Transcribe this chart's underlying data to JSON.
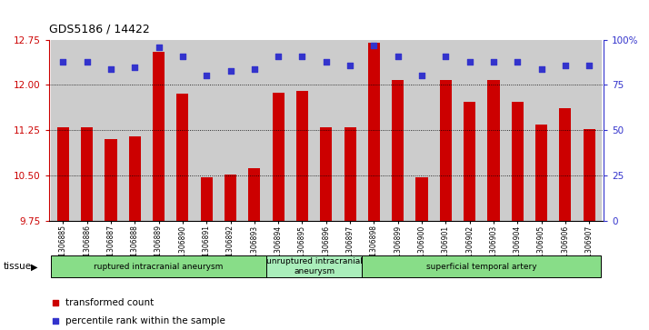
{
  "title": "GDS5186 / 14422",
  "samples": [
    "GSM1306885",
    "GSM1306886",
    "GSM1306887",
    "GSM1306888",
    "GSM1306889",
    "GSM1306890",
    "GSM1306891",
    "GSM1306892",
    "GSM1306893",
    "GSM1306894",
    "GSM1306895",
    "GSM1306896",
    "GSM1306897",
    "GSM1306898",
    "GSM1306899",
    "GSM1306900",
    "GSM1306901",
    "GSM1306902",
    "GSM1306903",
    "GSM1306904",
    "GSM1306905",
    "GSM1306906",
    "GSM1306907"
  ],
  "bar_values": [
    11.3,
    11.3,
    11.1,
    11.15,
    12.55,
    11.85,
    10.47,
    10.52,
    10.63,
    11.87,
    11.9,
    11.3,
    11.3,
    12.7,
    12.08,
    10.47,
    12.08,
    11.72,
    12.08,
    11.72,
    11.35,
    11.62,
    11.27
  ],
  "dot_values": [
    88,
    88,
    84,
    85,
    96,
    91,
    80,
    83,
    84,
    91,
    91,
    88,
    86,
    97,
    91,
    80,
    91,
    88,
    88,
    88,
    84,
    86,
    86
  ],
  "ylim_left": [
    9.75,
    12.75
  ],
  "ylim_right": [
    0,
    100
  ],
  "yticks_left": [
    9.75,
    10.5,
    11.25,
    12.0,
    12.75
  ],
  "yticks_right": [
    0,
    25,
    50,
    75,
    100
  ],
  "grid_lines": [
    10.5,
    11.25,
    12.0
  ],
  "bar_color": "#CC0000",
  "dot_color": "#3333CC",
  "tick_bg_color": "#CCCCCC",
  "plot_bg": "#FFFFFF",
  "groups": [
    {
      "label": "ruptured intracranial aneurysm",
      "start": 0,
      "end": 8,
      "color": "#88DD88"
    },
    {
      "label": "unruptured intracranial\naneurysm",
      "start": 9,
      "end": 12,
      "color": "#AAEEBB"
    },
    {
      "label": "superficial temporal artery",
      "start": 13,
      "end": 22,
      "color": "#88DD88"
    }
  ],
  "legend_bar_label": "transformed count",
  "legend_dot_label": "percentile rank within the sample",
  "tissue_label": "tissue"
}
